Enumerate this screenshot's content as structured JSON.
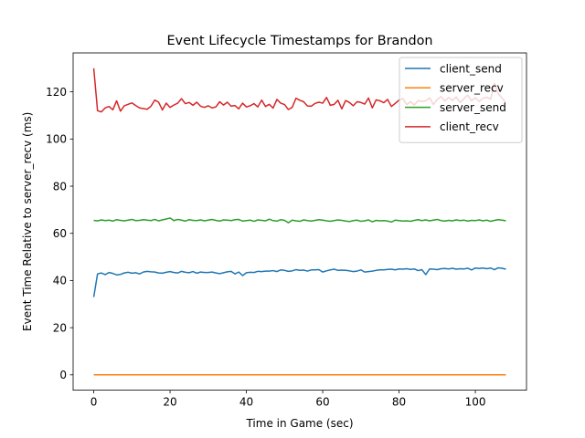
{
  "chart_data": {
    "type": "line",
    "title": "Event Lifecycle Timestamps for Brandon",
    "xlabel": "Time in Game (sec)",
    "ylabel": "Event Time Relative to server_recv (ms)",
    "xlim": [
      -5.4,
      113.4
    ],
    "ylim": [
      -6.5,
      136.5
    ],
    "xticks": [
      0,
      20,
      40,
      60,
      80,
      100
    ],
    "yticks": [
      0,
      20,
      40,
      60,
      80,
      100,
      120
    ],
    "grid": false,
    "legend_position": "top-right",
    "x_step": 1,
    "series": [
      {
        "name": "client_send",
        "color": "#1f77b4",
        "values": [
          33.0,
          42.8,
          43.2,
          42.5,
          43.4,
          43.0,
          42.4,
          42.6,
          43.2,
          43.5,
          43.1,
          43.3,
          42.8,
          43.6,
          43.9,
          43.7,
          43.6,
          43.2,
          43.1,
          43.5,
          43.8,
          43.4,
          43.2,
          43.9,
          43.5,
          43.3,
          43.8,
          43.1,
          43.6,
          43.4,
          43.4,
          43.6,
          43.2,
          42.9,
          43.3,
          43.7,
          43.9,
          42.8,
          43.6,
          42.1,
          43.3,
          43.5,
          43.4,
          43.9,
          43.8,
          44.0,
          44.0,
          44.2,
          43.8,
          44.5,
          44.3,
          43.9,
          44.1,
          44.6,
          44.3,
          44.4,
          44.0,
          44.5,
          44.5,
          44.6,
          43.6,
          44.1,
          44.5,
          44.8,
          44.3,
          44.4,
          44.3,
          44.1,
          43.8,
          44.0,
          44.5,
          43.6,
          43.8,
          44.0,
          44.3,
          44.5,
          44.5,
          44.7,
          44.8,
          44.5,
          44.9,
          44.8,
          45.0,
          44.7,
          44.9,
          44.2,
          44.6,
          42.5,
          44.9,
          44.8,
          44.6,
          45.0,
          45.1,
          44.9,
          45.2,
          44.8,
          45.0,
          44.9,
          45.2,
          44.5,
          45.3,
          45.1,
          45.3,
          45.0,
          45.3,
          44.6,
          45.4,
          45.2,
          44.8
        ]
      },
      {
        "name": "server_recv",
        "color": "#ff7f0e",
        "values": [
          0.0,
          0.0,
          0.0,
          0.0,
          0.0,
          0.0,
          0.0,
          0.0,
          0.0,
          0.0,
          0.0,
          0.0,
          0.0,
          0.0,
          0.0,
          0.0,
          0.0,
          0.0,
          0.0,
          0.0,
          0.0,
          0.0,
          0.0,
          0.0,
          0.0,
          0.0,
          0.0,
          0.0,
          0.0,
          0.0,
          0.0,
          0.0,
          0.0,
          0.0,
          0.0,
          0.0,
          0.0,
          0.0,
          0.0,
          0.0,
          0.0,
          0.0,
          0.0,
          0.0,
          0.0,
          0.0,
          0.0,
          0.0,
          0.0,
          0.0,
          0.0,
          0.0,
          0.0,
          0.0,
          0.0,
          0.0,
          0.0,
          0.0,
          0.0,
          0.0,
          0.0,
          0.0,
          0.0,
          0.0,
          0.0,
          0.0,
          0.0,
          0.0,
          0.0,
          0.0,
          0.0,
          0.0,
          0.0,
          0.0,
          0.0,
          0.0,
          0.0,
          0.0,
          0.0,
          0.0,
          0.0,
          0.0,
          0.0,
          0.0,
          0.0,
          0.0,
          0.0,
          0.0,
          0.0,
          0.0,
          0.0,
          0.0,
          0.0,
          0.0,
          0.0,
          0.0,
          0.0,
          0.0,
          0.0,
          0.0,
          0.0,
          0.0,
          0.0,
          0.0,
          0.0,
          0.0,
          0.0,
          0.0,
          0.0
        ]
      },
      {
        "name": "server_send",
        "color": "#2ca02c",
        "values": [
          65.5,
          65.3,
          65.7,
          65.4,
          65.6,
          65.2,
          65.8,
          65.5,
          65.3,
          65.6,
          65.9,
          65.4,
          65.5,
          65.8,
          65.6,
          65.4,
          65.9,
          65.3,
          65.7,
          66.1,
          66.5,
          65.4,
          65.9,
          65.6,
          65.2,
          65.8,
          65.5,
          65.4,
          65.7,
          65.3,
          65.6,
          65.9,
          65.5,
          65.2,
          65.7,
          65.6,
          65.4,
          65.8,
          65.9,
          65.2,
          65.4,
          65.6,
          65.1,
          65.7,
          65.5,
          65.3,
          66.0,
          65.4,
          65.2,
          65.8,
          65.5,
          64.5,
          65.6,
          65.3,
          65.1,
          65.7,
          65.4,
          65.2,
          65.5,
          65.8,
          65.6,
          65.3,
          65.1,
          65.4,
          65.7,
          65.5,
          65.2,
          65.0,
          65.4,
          65.6,
          65.1,
          65.3,
          65.7,
          64.9,
          65.5,
          65.3,
          65.4,
          65.2,
          64.8,
          65.6,
          65.4,
          65.2,
          65.3,
          65.1,
          65.5,
          65.8,
          65.4,
          65.7,
          65.3,
          65.6,
          65.9,
          65.4,
          65.2,
          65.5,
          65.3,
          65.7,
          65.4,
          65.6,
          65.2,
          65.5,
          65.4,
          65.7,
          65.3,
          65.6,
          65.1,
          65.5,
          65.8,
          65.6,
          65.3
        ]
      },
      {
        "name": "client_recv",
        "color": "#d62728",
        "values": [
          130.0,
          112.0,
          111.5,
          113.2,
          113.8,
          112.4,
          116.2,
          111.8,
          114.1,
          114.7,
          115.3,
          114.2,
          113.2,
          112.9,
          112.6,
          113.9,
          116.5,
          115.6,
          112.3,
          115.2,
          113.4,
          114.4,
          115.2,
          117.1,
          115.0,
          115.5,
          114.3,
          115.6,
          113.9,
          113.4,
          114.1,
          113.2,
          113.6,
          115.8,
          114.4,
          115.6,
          113.9,
          114.2,
          112.8,
          115.2,
          113.6,
          114.1,
          115.0,
          113.6,
          116.5,
          113.8,
          114.7,
          113.1,
          116.8,
          115.2,
          114.6,
          112.5,
          113.4,
          117.3,
          116.4,
          115.8,
          114.0,
          113.9,
          115.1,
          115.6,
          115.2,
          117.6,
          114.3,
          114.7,
          116.4,
          112.8,
          116.3,
          115.5,
          114.1,
          115.8,
          115.5,
          114.8,
          117.4,
          113.2,
          116.6,
          116.2,
          115.4,
          116.8,
          113.8,
          115.1,
          116.5,
          117.2,
          114.6,
          115.8,
          114.4,
          116.3,
          115.9,
          116.2,
          117.5,
          114.6,
          116.7,
          118.0,
          116.1,
          117.6,
          116.3,
          117.8,
          115.5,
          117.1,
          118.6,
          116.2,
          117.5,
          115.9,
          117.3,
          117.7,
          116.9,
          123.6,
          119.2,
          117.4,
          115.3
        ]
      }
    ]
  }
}
